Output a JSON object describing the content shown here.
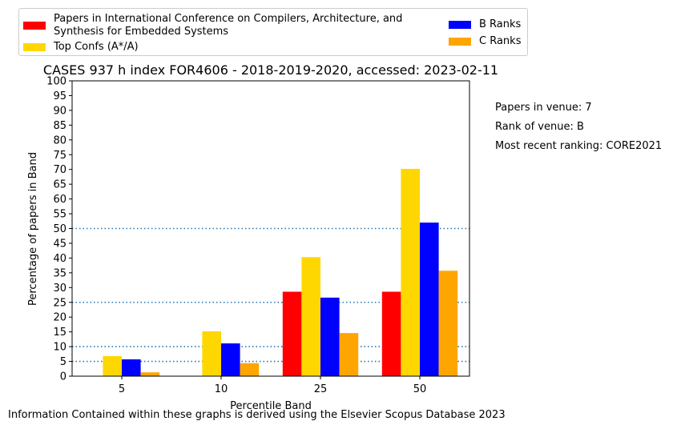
{
  "chart_data": {
    "type": "bar",
    "title": "CASES 937 h index FOR4606 - 2018-2019-2020, accessed: 2023-02-11",
    "xlabel": "Percentile Band",
    "ylabel": "Percentage of papers in Band",
    "categories": [
      "5",
      "10",
      "25",
      "50"
    ],
    "ylim": [
      0,
      100
    ],
    "yticks": [
      "0",
      "5",
      "10",
      "15",
      "20",
      "25",
      "30",
      "35",
      "40",
      "45",
      "50",
      "55",
      "60",
      "65",
      "70",
      "75",
      "80",
      "85",
      "90",
      "95",
      "100"
    ],
    "reference_lines": [
      5,
      10,
      25,
      50
    ],
    "legend_position": "top",
    "series": [
      {
        "name": "Papers in International Conference on Compilers, Architecture, and Synthesis for Embedded Systems",
        "color": "#ff0000",
        "values": [
          0,
          0,
          28.6,
          28.6
        ]
      },
      {
        "name": "Top Confs (A*/A)",
        "color": "#ffd700",
        "values": [
          6.8,
          15.2,
          40.3,
          70.2
        ]
      },
      {
        "name": "B Ranks",
        "color": "#0000ff",
        "values": [
          5.7,
          11.1,
          26.6,
          52.0
        ]
      },
      {
        "name": "C Ranks",
        "color": "#ffa500",
        "values": [
          1.3,
          4.4,
          14.6,
          35.7
        ]
      }
    ]
  },
  "legend": {
    "label_venue_line1": "Papers in International Conference on Compilers, Architecture, and",
    "label_venue_line2": "Synthesis for Embedded Systems"
  },
  "side_notes": {
    "papers_in_venue": "Papers in venue: 7",
    "rank_of_venue": "Rank of venue: B",
    "most_recent_ranking": "Most recent ranking: CORE2021"
  },
  "footer": "Information Contained within these graphs is derived using the Elsevier Scopus Database 2023"
}
